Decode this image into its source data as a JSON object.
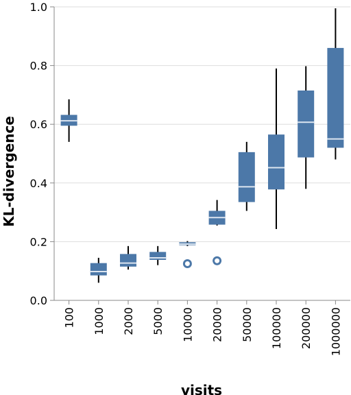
{
  "chart_data": {
    "type": "box",
    "xlabel": "visits",
    "ylabel": "KL-divergence",
    "ylim": [
      0,
      1
    ],
    "yticks": [
      "0.0",
      "0.2",
      "0.4",
      "0.6",
      "0.8",
      "1.0"
    ],
    "grid": true,
    "categories": [
      "100",
      "1000",
      "2000",
      "5000",
      "10000",
      "20000",
      "50000",
      "100000",
      "200000",
      "1000000"
    ],
    "boxes": [
      {
        "category": "100",
        "min": 0.54,
        "q1": 0.595,
        "median": 0.612,
        "q3": 0.632,
        "max": 0.685,
        "outliers": []
      },
      {
        "category": "1000",
        "min": 0.06,
        "q1": 0.085,
        "median": 0.098,
        "q3": 0.127,
        "max": 0.145,
        "outliers": []
      },
      {
        "category": "2000",
        "min": 0.105,
        "q1": 0.115,
        "median": 0.127,
        "q3": 0.158,
        "max": 0.185,
        "outliers": []
      },
      {
        "category": "5000",
        "min": 0.12,
        "q1": 0.138,
        "median": 0.145,
        "q3": 0.165,
        "max": 0.185,
        "outliers": []
      },
      {
        "category": "10000",
        "min": 0.185,
        "q1": 0.188,
        "median": 0.192,
        "q3": 0.198,
        "max": 0.202,
        "outliers": [
          0.125
        ]
      },
      {
        "category": "20000",
        "min": 0.255,
        "q1": 0.258,
        "median": 0.282,
        "q3": 0.305,
        "max": 0.342,
        "outliers": [
          0.135
        ]
      },
      {
        "category": "50000",
        "min": 0.305,
        "q1": 0.335,
        "median": 0.387,
        "q3": 0.505,
        "max": 0.54,
        "outliers": []
      },
      {
        "category": "100000",
        "min": 0.243,
        "q1": 0.378,
        "median": 0.452,
        "q3": 0.565,
        "max": 0.79,
        "outliers": []
      },
      {
        "category": "200000",
        "min": 0.38,
        "q1": 0.487,
        "median": 0.607,
        "q3": 0.715,
        "max": 0.798,
        "outliers": []
      },
      {
        "category": "1000000",
        "min": 0.48,
        "q1": 0.52,
        "median": 0.55,
        "q3": 0.86,
        "max": 0.995,
        "outliers": []
      }
    ],
    "colors": {
      "box": "#4c78a8",
      "median": "#dde6f0",
      "whisker": "#000000",
      "outlier": "#4c78a8",
      "grid": "#dddddd",
      "axis": "#888888"
    }
  }
}
